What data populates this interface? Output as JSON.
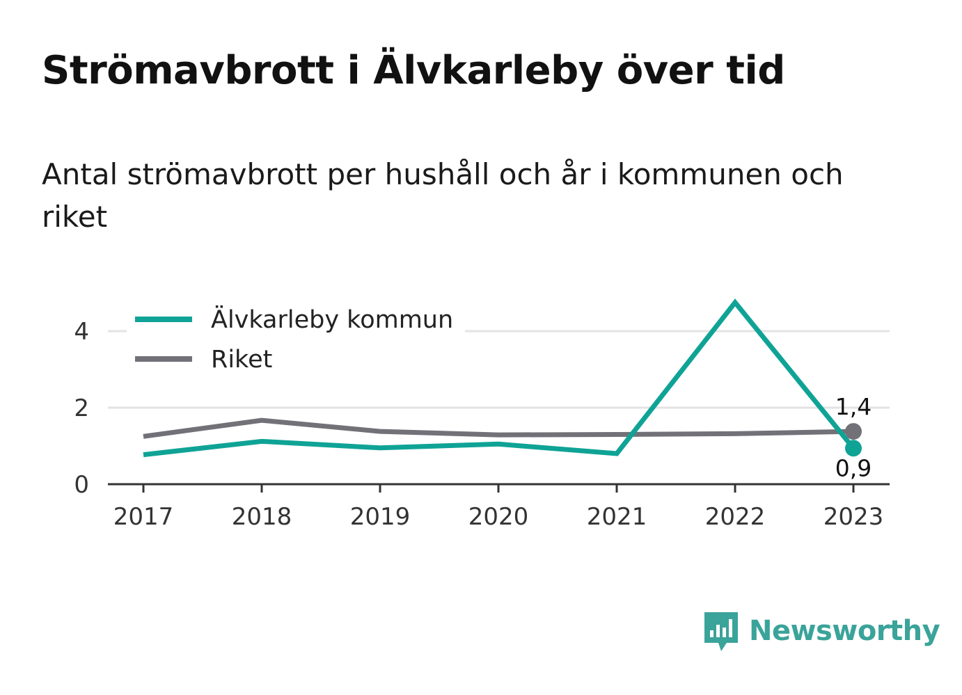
{
  "title": "Strömavbrott i Älvkarleby över tid",
  "subtitle": "Antal strömavbrott per hushåll och år i kommunen och riket",
  "brand": {
    "name": "Newsworthy",
    "icon": "newsworthy-logo-icon",
    "color": "#3aa39a"
  },
  "chart_data": {
    "type": "line",
    "x": [
      "2017",
      "2018",
      "2019",
      "2020",
      "2021",
      "2022",
      "2023"
    ],
    "yticks": [
      "0",
      "2",
      "4"
    ],
    "ylim": [
      0,
      4.9
    ],
    "grid": true,
    "legend_position": "top-left",
    "series": [
      {
        "name": "Älvkarleby kommun",
        "color": "#0fa396",
        "values": [
          0.77,
          1.12,
          0.95,
          1.05,
          0.8,
          4.75,
          0.94
        ],
        "end_label": "0,9"
      },
      {
        "name": "Riket",
        "color": "#737178",
        "values": [
          1.25,
          1.67,
          1.38,
          1.29,
          1.3,
          1.32,
          1.38
        ],
        "end_label": "1,4"
      }
    ]
  }
}
